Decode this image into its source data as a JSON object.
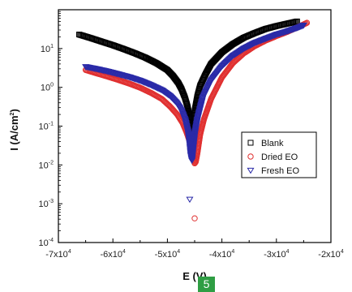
{
  "chart_data": {
    "type": "scatter",
    "title": "",
    "xlabel": "E (V)",
    "ylabel": "I (A/cm2)",
    "x_range": [
      -70000,
      -20000
    ],
    "y_range": [
      0.0001,
      100
    ],
    "y_scale": "log",
    "x_ticks": [
      {
        "value": -70000,
        "base": "-7x10",
        "exp": "4"
      },
      {
        "value": -60000,
        "base": "-6x10",
        "exp": "4"
      },
      {
        "value": -50000,
        "base": "-5x10",
        "exp": "4"
      },
      {
        "value": -40000,
        "base": "-4x10",
        "exp": "4"
      },
      {
        "value": -30000,
        "base": "-3x10",
        "exp": "4"
      },
      {
        "value": -20000,
        "base": "-2x10",
        "exp": "4"
      }
    ],
    "y_ticks": [
      {
        "value": 10,
        "base": "10",
        "exp": "1"
      },
      {
        "value": 1,
        "base": "10",
        "exp": "0"
      },
      {
        "value": 0.1,
        "base": "10",
        "exp": "-1"
      },
      {
        "value": 0.01,
        "base": "10",
        "exp": "-2"
      },
      {
        "value": 0.001,
        "base": "10",
        "exp": "-3"
      },
      {
        "value": 0.0001,
        "base": "10",
        "exp": "-4"
      }
    ],
    "legend_position": "right",
    "grid": false,
    "series": [
      {
        "name": "Blank",
        "marker": "square",
        "color": "#000000",
        "x": [
          -66200,
          -64000,
          -62000,
          -60000,
          -58000,
          -56000,
          -54000,
          -52000,
          -50000,
          -49000,
          -48000,
          -47400,
          -46800,
          -46300,
          -45900,
          -45600,
          -45500,
          -45400,
          -45000,
          -44500,
          -44000,
          -43000,
          -42000,
          -40000,
          -38000,
          -36000,
          -34000,
          -32000,
          -30000,
          -28000,
          -26200
        ],
        "y": [
          23,
          18.5,
          15,
          12.2,
          9.7,
          7.6,
          5.8,
          4.2,
          2.8,
          2.0,
          1.3,
          0.9,
          0.55,
          0.32,
          0.17,
          0.08,
          0.025,
          0.05,
          0.25,
          0.6,
          1.1,
          2.2,
          4,
          8,
          13,
          19,
          25,
          32,
          38,
          44,
          50
        ]
      },
      {
        "name": "Dried EO",
        "marker": "circle",
        "color": "#e03030",
        "x": [
          -65000,
          -63000,
          -61000,
          -59000,
          -57000,
          -55000,
          -53000,
          -51000,
          -49500,
          -48200,
          -47200,
          -46500,
          -45900,
          -45500,
          -45200,
          -45000,
          -44800,
          -44500,
          -44000,
          -43300,
          -42000,
          -40000,
          -38000,
          -36000,
          -34000,
          -32000,
          -30000,
          -28000,
          -26000,
          -24400
        ],
        "y": [
          2.8,
          2.3,
          1.9,
          1.55,
          1.25,
          0.98,
          0.72,
          0.5,
          0.32,
          0.2,
          0.12,
          0.07,
          0.04,
          0.025,
          0.017,
          0.011,
          0.012,
          0.02,
          0.06,
          0.15,
          0.5,
          1.8,
          4.2,
          7.5,
          11.5,
          16,
          21,
          27,
          36,
          46
        ]
      },
      {
        "name": "Fresh EO",
        "marker": "triangle",
        "color": "#2a2aa8",
        "x": [
          -65000,
          -63000,
          -61000,
          -59000,
          -57000,
          -55000,
          -53000,
          -51000,
          -49500,
          -48300,
          -47400,
          -46700,
          -46200,
          -45900,
          -45700,
          -45500,
          -45300,
          -45000,
          -44500,
          -43500,
          -42000,
          -40000,
          -38000,
          -36000,
          -34000,
          -32000,
          -30000,
          -28000,
          -26000,
          -25000
        ],
        "y": [
          3.4,
          3.0,
          2.6,
          2.2,
          1.85,
          1.5,
          1.15,
          0.85,
          0.6,
          0.4,
          0.25,
          0.14,
          0.07,
          0.035,
          0.018,
          0.013,
          0.025,
          0.06,
          0.15,
          0.55,
          1.5,
          3.5,
          6.5,
          10,
          14,
          18,
          23,
          28,
          35,
          40
        ]
      },
      {
        "name": "",
        "marker": "triangle",
        "color": "#2a2aa8",
        "x": [
          -45900
        ],
        "y": [
          0.0013
        ]
      },
      {
        "name": "",
        "marker": "circle",
        "color": "#e03030",
        "x": [
          -45000
        ],
        "y": [
          0.00042
        ]
      }
    ]
  },
  "page_badge": "5"
}
